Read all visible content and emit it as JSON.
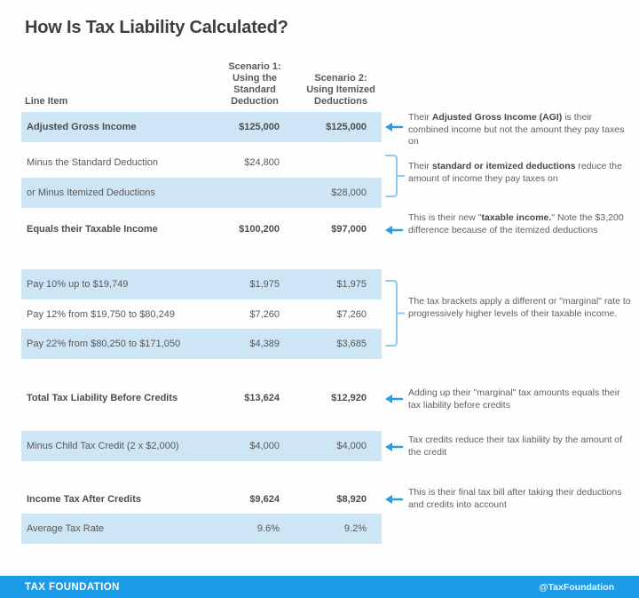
{
  "title": "How Is Tax Liability Calculated?",
  "colors": {
    "row_highlight": "#cee5f5",
    "arrow_blue": "#2a9de3",
    "bracket_blue": "#8fc8ea",
    "footer_blue": "#1b9ce8"
  },
  "table": {
    "line_item_header": "Line Item",
    "col1_header": "Scenario 1:\nUsing the\nStandard\nDeduction",
    "col2_header": "Scenario 2:\nUsing Itemized\nDeductions",
    "rows": [
      {
        "label": "Adjusted Gross Income",
        "s1": "$125,000",
        "s2": "$125,000",
        "shaded": true,
        "bold": true
      },
      {
        "label": "Minus the Standard Deduction",
        "s1": "$24,800",
        "s2": "",
        "shaded": false,
        "bold": false
      },
      {
        "label": "or Minus Itemized Deductions",
        "s1": "",
        "s2": "$28,000",
        "shaded": true,
        "bold": false
      },
      {
        "label": "Equals their Taxable Income",
        "s1": "$100,200",
        "s2": "$97,000",
        "shaded": false,
        "bold": true
      },
      {
        "label": "Pay 10% up to $19,749",
        "s1": "$1,975",
        "s2": "$1,975",
        "shaded": true,
        "bold": false
      },
      {
        "label": "Pay 12% from $19,750 to $80,249",
        "s1": "$7,260",
        "s2": "$7,260",
        "shaded": false,
        "bold": false
      },
      {
        "label": "Pay 22% from $80,250 to $171,050",
        "s1": "$4,389",
        "s2": "$3,685",
        "shaded": true,
        "bold": false
      },
      {
        "label": "Total Tax Liability Before Credits",
        "s1": "$13,624",
        "s2": "$12,920",
        "shaded": false,
        "bold": true
      },
      {
        "label": "Minus Child Tax Credit (2 x $2,000)",
        "s1": "$4,000",
        "s2": "$4,000",
        "shaded": true,
        "bold": false
      },
      {
        "label": "Income Tax After Credits",
        "s1": "$9,624",
        "s2": "$8,920",
        "shaded": false,
        "bold": true
      },
      {
        "label": "Average Tax Rate",
        "s1": "9.6%",
        "s2": "9.2%",
        "shaded": true,
        "bold": false
      }
    ]
  },
  "annotations": [
    {
      "marker": "arrow",
      "segments": [
        {
          "t": "Their ",
          "b": false
        },
        {
          "t": "Adjusted Gross Income (AGI)",
          "b": true
        },
        {
          "t": " is their combined income but not the amount they pay taxes on",
          "b": false
        }
      ]
    },
    {
      "marker": "bracket",
      "segments": [
        {
          "t": "Their ",
          "b": false
        },
        {
          "t": "standard or itemized deductions",
          "b": true
        },
        {
          "t": " reduce the amount of income they pay taxes on",
          "b": false
        }
      ]
    },
    {
      "marker": "arrow",
      "segments": [
        {
          "t": "This is their new \"",
          "b": false
        },
        {
          "t": "taxable income.",
          "b": true
        },
        {
          "t": "\" Note the $3,200 difference because of the itemized deductions",
          "b": false
        }
      ]
    },
    {
      "marker": "bracket",
      "segments": [
        {
          "t": "The tax brackets apply a different or \"marginal\" rate to progressively higher levels of their taxable income.",
          "b": false
        }
      ]
    },
    {
      "marker": "arrow",
      "segments": [
        {
          "t": "Adding up their \"marginal\" tax amounts equals their tax liability before credits",
          "b": false
        }
      ]
    },
    {
      "marker": "arrow",
      "segments": [
        {
          "t": "Tax credits reduce their tax liability by the amount of the credit",
          "b": false
        }
      ]
    },
    {
      "marker": "arrow",
      "segments": [
        {
          "t": "This is their final tax bill after taking their deductions and credits into account",
          "b": false
        }
      ]
    }
  ],
  "footer": {
    "brand": "TAX FOUNDATION",
    "handle": "@TaxFoundation"
  },
  "chart_data": {
    "type": "table",
    "title": "How Is Tax Liability Calculated?",
    "columns": [
      "Line Item",
      "Scenario 1: Using the Standard Deduction",
      "Scenario 2: Using Itemized Deductions"
    ],
    "rows": [
      [
        "Adjusted Gross Income",
        "$125,000",
        "$125,000"
      ],
      [
        "Minus the Standard Deduction",
        "$24,800",
        ""
      ],
      [
        "or Minus Itemized Deductions",
        "",
        "$28,000"
      ],
      [
        "Equals their Taxable Income",
        "$100,200",
        "$97,000"
      ],
      [
        "Pay 10% up to $19,749",
        "$1,975",
        "$1,975"
      ],
      [
        "Pay 12% from $19,750 to $80,249",
        "$7,260",
        "$7,260"
      ],
      [
        "Pay 22% from $80,250 to $171,050",
        "$4,389",
        "$3,685"
      ],
      [
        "Total Tax Liability Before Credits",
        "$13,624",
        "$12,920"
      ],
      [
        "Minus Child Tax Credit (2 x $2,000)",
        "$4,000",
        "$4,000"
      ],
      [
        "Income Tax After Credits",
        "$9,624",
        "$8,920"
      ],
      [
        "Average Tax Rate",
        "9.6%",
        "9.2%"
      ]
    ]
  }
}
